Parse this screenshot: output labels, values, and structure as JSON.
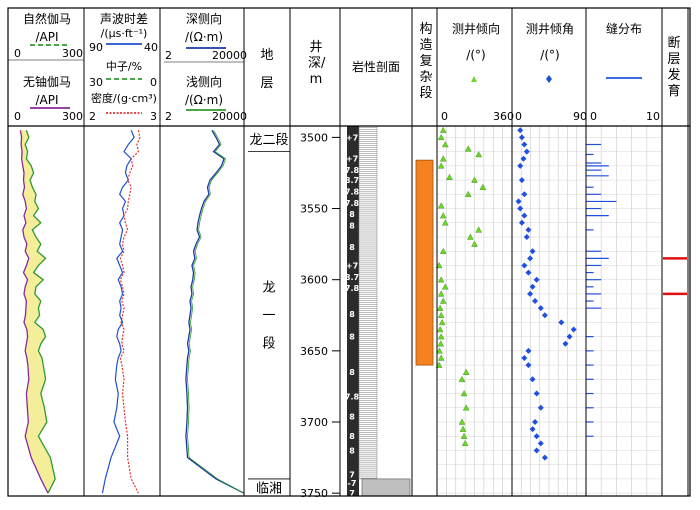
{
  "headers": {
    "gr": {
      "title": "自然伽马",
      "unit": "/API",
      "min": "0",
      "max": "300"
    },
    "kth": {
      "title": "无铀伽马",
      "unit": "/API",
      "min": "0",
      "max": "300"
    },
    "ac": {
      "title": "声波时差",
      "unit": "/(μs·ft⁻¹)",
      "min": "90",
      "max": "40"
    },
    "cnl": {
      "title": "中子/%",
      "min": "30",
      "max": "0"
    },
    "den": {
      "title": "密度/(g·cm³)",
      "min": "2",
      "max": "3"
    },
    "rd": {
      "title": "深侧向",
      "unit": "/(Ω·m)",
      "min": "2",
      "max": "20000"
    },
    "rs": {
      "title": "浅侧向",
      "unit": "/(Ω·m)",
      "min": "2",
      "max": "20000"
    },
    "strata": {
      "title": "地层"
    },
    "depth": {
      "title": "井深/m"
    },
    "litho": {
      "title": "岩性剖面"
    },
    "complex": {
      "title": "构造复杂段"
    },
    "azimuth": {
      "title": "测井倾向",
      "unit": "/(°)",
      "min": "0",
      "max": "360"
    },
    "dip": {
      "title": "测井倾角",
      "unit": "/(°)",
      "min": "0",
      "max": "90"
    },
    "fracture": {
      "title": "缝分布",
      "min": "0",
      "max": "10"
    },
    "fault": {
      "title": "断层发育"
    }
  },
  "strata": [
    {
      "name": "龙二段",
      "top": 3492,
      "bottom": 3510
    },
    {
      "name": "龙一段",
      "top": 3510,
      "bottom": 3740
    },
    {
      "name": "临湘",
      "top": 3740,
      "bottom": 3752
    }
  ],
  "depth_ticks": [
    "3500",
    "3550",
    "3600",
    "3650",
    "3700",
    "3750"
  ],
  "litho_labels": [
    {
      "text": "+7",
      "depth": 3500
    },
    {
      "text": "+7",
      "depth": 3515
    },
    {
      "text": "7.8",
      "depth": 3523
    },
    {
      "text": "8.7",
      "depth": 3530
    },
    {
      "text": "7.8",
      "depth": 3538
    },
    {
      "text": "7.8",
      "depth": 3546
    },
    {
      "text": "8",
      "depth": 3554
    },
    {
      "text": "8",
      "depth": 3562
    },
    {
      "text": "8",
      "depth": 3577
    },
    {
      "text": "+7",
      "depth": 3590
    },
    {
      "text": "8.7",
      "depth": 3598
    },
    {
      "text": "7.8",
      "depth": 3606
    },
    {
      "text": "8",
      "depth": 3624
    },
    {
      "text": "8",
      "depth": 3640
    },
    {
      "text": "8",
      "depth": 3665
    },
    {
      "text": "7.8",
      "depth": 3682
    },
    {
      "text": "8",
      "depth": 3696
    },
    {
      "text": "8",
      "depth": 3710
    },
    {
      "text": "8",
      "depth": 3720
    },
    {
      "text": "7",
      "depth": 3737
    },
    {
      "text": "-7",
      "depth": 3743
    },
    {
      "text": "7",
      "depth": 3750
    }
  ],
  "chart_data": {
    "type": "line",
    "depth_range": [
      3492,
      3752
    ],
    "complex_zone": [
      3516,
      3660
    ],
    "faults": [
      3585,
      3610
    ],
    "series": [
      {
        "name": "GR",
        "x": [
          60,
          70,
          55,
          65,
          60,
          80,
          90,
          75,
          85,
          100,
          95,
          110,
          90,
          120,
          85,
          100,
          120,
          105,
          140,
          110,
          90,
          130,
          100,
          95,
          120,
          110,
          115,
          95,
          130,
          140,
          120,
          110,
          125,
          130,
          140,
          120,
          135,
          145,
          110,
          160,
          180,
          150
        ],
        "depth": [
          3495,
          3500,
          3505,
          3510,
          3515,
          3520,
          3525,
          3530,
          3535,
          3540,
          3545,
          3550,
          3555,
          3560,
          3565,
          3570,
          3575,
          3580,
          3585,
          3590,
          3595,
          3600,
          3605,
          3610,
          3615,
          3620,
          3625,
          3630,
          3635,
          3640,
          3645,
          3650,
          3655,
          3660,
          3670,
          3680,
          3690,
          3700,
          3710,
          3725,
          3740,
          3750
        ]
      },
      {
        "name": "KTH",
        "x": [
          35,
          40,
          38,
          42,
          40,
          45,
          50,
          48,
          52,
          45,
          55,
          60,
          50,
          58,
          45,
          50,
          62,
          55,
          70,
          60,
          48,
          65,
          55,
          50,
          60,
          58,
          56,
          50,
          62,
          65,
          60,
          55,
          62,
          66,
          70,
          60,
          64,
          68,
          55,
          80,
          120,
          150
        ],
        "depth": [
          3495,
          3500,
          3505,
          3510,
          3515,
          3520,
          3525,
          3530,
          3535,
          3540,
          3545,
          3550,
          3555,
          3560,
          3565,
          3570,
          3575,
          3580,
          3585,
          3590,
          3595,
          3600,
          3605,
          3610,
          3615,
          3620,
          3625,
          3630,
          3635,
          3640,
          3645,
          3650,
          3655,
          3660,
          3670,
          3680,
          3690,
          3700,
          3710,
          3725,
          3740,
          3750
        ]
      },
      {
        "name": "AC",
        "x": [
          60,
          58,
          62,
          65,
          60,
          63,
          64,
          62,
          66,
          68,
          64,
          66,
          65,
          68,
          66,
          67,
          68,
          66,
          70,
          68,
          66,
          69,
          67,
          66,
          68,
          67,
          68,
          66,
          69,
          70,
          68,
          67,
          69,
          70,
          71,
          69,
          70,
          72,
          68,
          74,
          78,
          80
        ],
        "depth": [
          3495,
          3500,
          3505,
          3510,
          3515,
          3520,
          3525,
          3530,
          3535,
          3540,
          3545,
          3550,
          3555,
          3560,
          3565,
          3570,
          3575,
          3580,
          3585,
          3590,
          3595,
          3600,
          3605,
          3610,
          3615,
          3620,
          3625,
          3630,
          3635,
          3640,
          3645,
          3650,
          3655,
          3660,
          3670,
          3680,
          3690,
          3700,
          3710,
          3725,
          3740,
          3750
        ]
      },
      {
        "name": "DEN",
        "x": [
          2.7,
          2.72,
          2.68,
          2.7,
          2.6,
          2.62,
          2.58,
          2.55,
          2.6,
          2.58,
          2.56,
          2.55,
          2.5,
          2.52,
          2.55,
          2.5,
          2.48,
          2.5,
          2.45,
          2.48,
          2.5,
          2.45,
          2.48,
          2.5,
          2.47,
          2.5,
          2.48,
          2.46,
          2.5,
          2.48,
          2.47,
          2.5,
          2.45,
          2.47,
          2.5,
          2.48,
          2.5,
          2.52,
          2.55,
          2.55,
          2.6,
          2.7
        ],
        "depth": [
          3495,
          3500,
          3505,
          3510,
          3515,
          3520,
          3525,
          3530,
          3535,
          3540,
          3545,
          3550,
          3555,
          3560,
          3565,
          3570,
          3575,
          3580,
          3585,
          3590,
          3595,
          3600,
          3605,
          3610,
          3615,
          3620,
          3625,
          3630,
          3635,
          3640,
          3645,
          3650,
          3655,
          3660,
          3670,
          3680,
          3690,
          3700,
          3710,
          3725,
          3740,
          3750
        ]
      },
      {
        "name": "RD",
        "x": [
          500,
          800,
          1200,
          600,
          2000,
          1500,
          800,
          400,
          300,
          350,
          200,
          150,
          120,
          100,
          90,
          120,
          80,
          60,
          70,
          50,
          60,
          55,
          45,
          50,
          40,
          45,
          40,
          35,
          40,
          35,
          30,
          35,
          30,
          28,
          25,
          28,
          30,
          28,
          25,
          30,
          800,
          20000
        ],
        "depth": [
          3495,
          3500,
          3505,
          3510,
          3515,
          3520,
          3525,
          3530,
          3535,
          3540,
          3545,
          3550,
          3555,
          3560,
          3565,
          3570,
          3575,
          3580,
          3585,
          3590,
          3595,
          3600,
          3605,
          3610,
          3615,
          3620,
          3625,
          3630,
          3635,
          3640,
          3645,
          3650,
          3655,
          3660,
          3670,
          3680,
          3690,
          3700,
          3710,
          3725,
          3740,
          3750
        ]
      },
      {
        "name": "AZIMUTH",
        "x": [
          30,
          20,
          40,
          150,
          200,
          30,
          20,
          60,
          180,
          220,
          150,
          20,
          30,
          40,
          200,
          160,
          180,
          30,
          10,
          20,
          40,
          20,
          30,
          15,
          20,
          25,
          15,
          20,
          18,
          12,
          20,
          10,
          140,
          120,
          130,
          140,
          120,
          125,
          130,
          135
        ],
        "depth": [
          3495,
          3500,
          3505,
          3508,
          3512,
          3515,
          3520,
          3528,
          3530,
          3535,
          3540,
          3548,
          3555,
          3560,
          3565,
          3570,
          3575,
          3580,
          3590,
          3600,
          3605,
          3610,
          3615,
          3620,
          3625,
          3630,
          3635,
          3640,
          3645,
          3650,
          3655,
          3660,
          3665,
          3670,
          3680,
          3690,
          3700,
          3705,
          3710,
          3715
        ]
      },
      {
        "name": "DIP",
        "x": [
          10,
          12,
          15,
          18,
          14,
          10,
          12,
          15,
          8,
          10,
          15,
          12,
          20,
          18,
          25,
          22,
          15,
          20,
          30,
          25,
          22,
          28,
          35,
          40,
          60,
          75,
          70,
          65,
          20,
          15,
          20,
          25,
          30,
          35,
          28,
          25,
          30,
          35,
          30,
          40
        ],
        "depth": [
          3495,
          3500,
          3505,
          3510,
          3515,
          3520,
          3530,
          3540,
          3545,
          3550,
          3555,
          3560,
          3565,
          3570,
          3580,
          3585,
          3590,
          3595,
          3600,
          3605,
          3610,
          3615,
          3620,
          3625,
          3630,
          3635,
          3640,
          3645,
          3650,
          3655,
          3660,
          3670,
          3680,
          3690,
          3700,
          3705,
          3710,
          3715,
          3720,
          3725
        ]
      },
      {
        "name": "FRACTURE",
        "x": [
          2,
          1,
          2,
          3,
          2,
          3,
          1,
          2,
          4,
          2,
          3,
          1,
          2,
          3,
          2,
          1,
          2,
          1,
          2,
          1,
          2,
          1,
          1,
          1,
          1,
          1,
          1,
          1,
          1
        ],
        "depth": [
          3505,
          3512,
          3518,
          3520,
          3523,
          3527,
          3535,
          3540,
          3545,
          3550,
          3555,
          3565,
          3580,
          3585,
          3590,
          3595,
          3600,
          3605,
          3610,
          3615,
          3620,
          3640,
          3650,
          3660,
          3670,
          3680,
          3690,
          3700,
          3710
        ]
      }
    ]
  }
}
